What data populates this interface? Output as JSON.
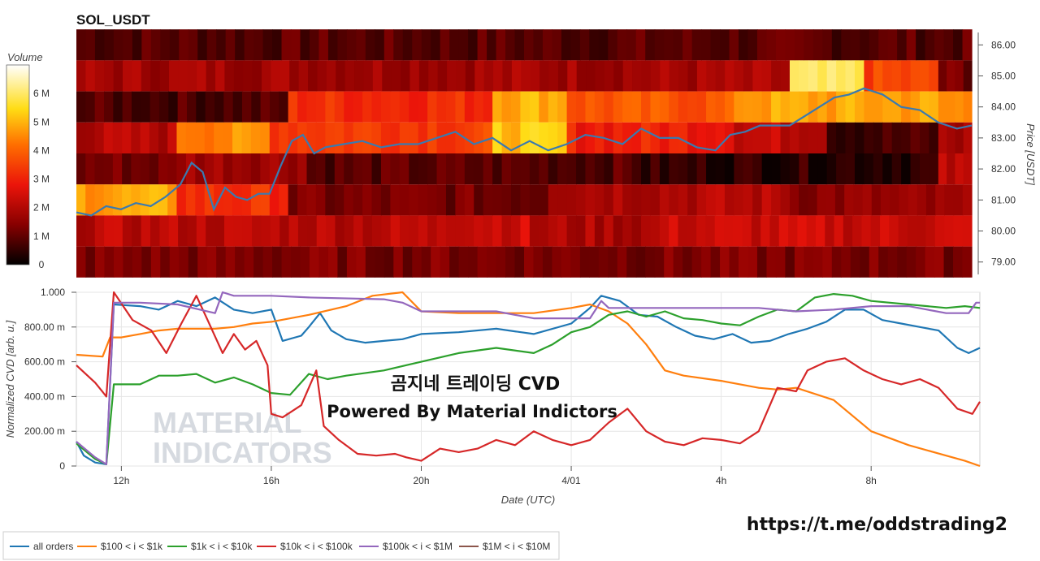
{
  "title": "SOL_USDT",
  "overlay": {
    "line1": "곰지네 트레이딩 CVD",
    "line2": "Powered By Material Indictors",
    "url": "https://t.me/oddstrading2",
    "watermark_top": "MATERIAL",
    "watermark_bottom": "INDICATORS"
  },
  "chart_data": [
    {
      "type": "heatmap",
      "title": "SOL_USDT",
      "ylabel": "Price [USDT]",
      "colorbar": {
        "title": "Volume",
        "ticks": [
          "0",
          "1 M",
          "2 M",
          "3 M",
          "4 M",
          "5 M",
          "6 M"
        ],
        "range": [
          0,
          7
        ]
      },
      "ylim": [
        78.6,
        86.4
      ],
      "y_ticks": [
        "79.00",
        "80.00",
        "81.00",
        "82.00",
        "83.00",
        "84.00",
        "85.00",
        "86.00"
      ],
      "price_bins": [
        79,
        80,
        81,
        82,
        83,
        84,
        85,
        86
      ],
      "x_range": [
        10.8,
        34.9
      ],
      "colors": {
        "low": "#000000",
        "mid1": "#a50000",
        "mid2": "#ff1e00",
        "mid3": "#ffb000",
        "high": "#ffffff"
      },
      "bands": [
        {
          "price": 86,
          "segments": [
            [
              10.8,
              34.9,
              0.9
            ]
          ]
        },
        {
          "price": 85,
          "segments": [
            [
              10.8,
              30.0,
              1.8
            ],
            [
              30.0,
              32.0,
              5.8
            ],
            [
              32.0,
              34.0,
              3.5
            ],
            [
              34.0,
              34.9,
              1.2
            ]
          ]
        },
        {
          "price": 84,
          "segments": [
            [
              10.8,
              16.5,
              0.8
            ],
            [
              16.5,
              22.0,
              3.2
            ],
            [
              22.0,
              24.0,
              5.0
            ],
            [
              24.0,
              28.5,
              3.8
            ],
            [
              28.5,
              34.0,
              4.8
            ],
            [
              34.0,
              34.9,
              4.5
            ]
          ]
        },
        {
          "price": 83,
          "segments": [
            [
              10.8,
              13.5,
              2.0
            ],
            [
              13.5,
              16.0,
              4.5
            ],
            [
              16.0,
              22.0,
              3.5
            ],
            [
              22.0,
              24.0,
              5.2
            ],
            [
              24.0,
              28.5,
              3.0
            ],
            [
              28.5,
              31.0,
              2.2
            ],
            [
              31.0,
              34.0,
              0.7
            ],
            [
              34.0,
              34.9,
              1.8
            ]
          ]
        },
        {
          "price": 82,
          "segments": [
            [
              10.8,
              13.5,
              1.2
            ],
            [
              13.5,
              17.0,
              1.8
            ],
            [
              17.0,
              26.0,
              0.9
            ],
            [
              26.0,
              34.0,
              0.5
            ],
            [
              34.0,
              34.9,
              2.0
            ]
          ]
        },
        {
          "price": 81,
          "segments": [
            [
              10.8,
              13.5,
              4.8
            ],
            [
              13.5,
              16.5,
              3.2
            ],
            [
              16.5,
              23.5,
              1.2
            ],
            [
              23.5,
              30.0,
              2.0
            ],
            [
              30.0,
              34.9,
              1.5
            ]
          ]
        },
        {
          "price": 80,
          "segments": [
            [
              10.8,
              20.5,
              2.1
            ],
            [
              20.5,
              23.0,
              2.4
            ],
            [
              23.0,
              26.5,
              1.9
            ],
            [
              26.5,
              34.9,
              2.3
            ]
          ]
        },
        {
          "price": 79,
          "segments": [
            [
              10.8,
              34.9,
              1.3
            ]
          ]
        }
      ],
      "price_line": {
        "color": "#3a7ab0",
        "x": [
          10.8,
          11.2,
          11.6,
          12.0,
          12.4,
          12.8,
          13.2,
          13.6,
          13.9,
          14.2,
          14.5,
          14.8,
          15.1,
          15.4,
          15.7,
          16.0,
          16.3,
          16.6,
          16.9,
          17.2,
          17.5,
          18.0,
          18.5,
          19.0,
          19.5,
          20.0,
          20.5,
          21.0,
          21.5,
          22.0,
          22.5,
          23.0,
          23.5,
          24.0,
          24.5,
          25.0,
          25.5,
          26.0,
          26.5,
          27.0,
          27.5,
          28.0,
          28.4,
          28.8,
          29.2,
          29.6,
          30.0,
          30.4,
          30.8,
          31.2,
          31.6,
          32.0,
          32.5,
          33.0,
          33.5,
          34.0,
          34.5,
          34.9
        ],
        "y": [
          80.6,
          80.5,
          80.8,
          80.7,
          80.9,
          80.8,
          81.1,
          81.5,
          82.2,
          81.9,
          80.7,
          81.4,
          81.1,
          81.0,
          81.2,
          81.2,
          82.1,
          82.9,
          83.1,
          82.5,
          82.7,
          82.8,
          82.9,
          82.7,
          82.8,
          82.8,
          83.0,
          83.2,
          82.8,
          83.0,
          82.6,
          82.9,
          82.6,
          82.8,
          83.1,
          83.0,
          82.8,
          83.3,
          83.0,
          83.0,
          82.7,
          82.6,
          83.1,
          83.2,
          83.4,
          83.4,
          83.4,
          83.7,
          84.0,
          84.3,
          84.4,
          84.6,
          84.4,
          84.0,
          83.9,
          83.5,
          83.3,
          83.4
        ]
      }
    },
    {
      "type": "line",
      "xlabel": "Date (UTC)",
      "ylabel": "Normalized CVD [arb. u.]",
      "ylim": [
        0,
        1.0
      ],
      "y_ticks": [
        "0",
        "200.00 m",
        "400.00 m",
        "600.00 m",
        "800.00 m",
        "1.000"
      ],
      "y_tick_values": [
        0,
        0.2,
        0.4,
        0.6,
        0.8,
        1.0
      ],
      "x_ticks": [
        "12h",
        "16h",
        "20h",
        "4/01",
        "4h",
        "8h"
      ],
      "x_tick_values": [
        12,
        16,
        20,
        24,
        28,
        32
      ],
      "x_range": [
        10.8,
        34.9
      ],
      "legend_position": "bottom",
      "series": [
        {
          "name": "all orders",
          "color": "#1f77b4",
          "x": [
            10.8,
            11.0,
            11.3,
            11.6,
            11.8,
            12.5,
            13.0,
            13.5,
            14.0,
            14.5,
            15.0,
            15.5,
            16.0,
            16.3,
            16.8,
            17.0,
            17.3,
            17.6,
            18.0,
            18.5,
            19.0,
            19.5,
            20.0,
            21.0,
            22.0,
            23.0,
            24.0,
            24.5,
            24.8,
            25.3,
            25.8,
            26.3,
            26.8,
            27.3,
            27.8,
            28.3,
            28.8,
            29.3,
            29.8,
            30.3,
            30.8,
            31.3,
            31.8,
            32.3,
            32.8,
            33.3,
            33.8,
            34.3,
            34.6,
            34.9
          ],
          "y": [
            0.14,
            0.06,
            0.02,
            0.01,
            0.93,
            0.92,
            0.9,
            0.95,
            0.92,
            0.97,
            0.9,
            0.88,
            0.9,
            0.72,
            0.75,
            0.8,
            0.88,
            0.78,
            0.73,
            0.71,
            0.72,
            0.73,
            0.76,
            0.77,
            0.79,
            0.76,
            0.82,
            0.91,
            0.98,
            0.95,
            0.87,
            0.86,
            0.8,
            0.75,
            0.73,
            0.76,
            0.71,
            0.72,
            0.76,
            0.79,
            0.83,
            0.9,
            0.9,
            0.84,
            0.82,
            0.8,
            0.78,
            0.68,
            0.65,
            0.68
          ]
        },
        {
          "name": "$100 < i < $1k",
          "color": "#ff7f0e",
          "x": [
            10.8,
            11.5,
            11.7,
            12.0,
            12.5,
            13.0,
            13.5,
            14.0,
            14.5,
            15.0,
            15.5,
            16.0,
            17.0,
            18.0,
            18.7,
            19.5,
            20.0,
            21.0,
            22.0,
            23.0,
            24.0,
            24.5,
            25.0,
            25.5,
            26.0,
            26.5,
            27.0,
            28.0,
            29.0,
            29.5,
            30.0,
            31.0,
            32.0,
            33.0,
            34.0,
            34.5,
            34.9
          ],
          "y": [
            0.64,
            0.63,
            0.74,
            0.74,
            0.76,
            0.78,
            0.79,
            0.79,
            0.79,
            0.8,
            0.82,
            0.83,
            0.87,
            0.92,
            0.98,
            1.0,
            0.89,
            0.88,
            0.88,
            0.88,
            0.91,
            0.93,
            0.89,
            0.82,
            0.7,
            0.55,
            0.52,
            0.49,
            0.45,
            0.44,
            0.45,
            0.38,
            0.2,
            0.12,
            0.06,
            0.03,
            0.0
          ]
        },
        {
          "name": "$1k < i < $10k",
          "color": "#2ca02c",
          "x": [
            10.8,
            11.3,
            11.6,
            11.8,
            12.5,
            13.0,
            13.5,
            14.0,
            14.5,
            15.0,
            15.5,
            16.0,
            16.5,
            17.0,
            17.5,
            18.0,
            19.0,
            20.0,
            21.0,
            22.0,
            23.0,
            23.5,
            24.0,
            24.5,
            25.0,
            25.5,
            26.0,
            26.5,
            27.0,
            27.5,
            28.0,
            28.5,
            29.0,
            29.5,
            30.0,
            30.5,
            31.0,
            31.5,
            32.0,
            33.0,
            34.0,
            34.5,
            34.9
          ],
          "y": [
            0.13,
            0.04,
            0.01,
            0.47,
            0.47,
            0.52,
            0.52,
            0.53,
            0.48,
            0.51,
            0.47,
            0.42,
            0.41,
            0.53,
            0.5,
            0.52,
            0.55,
            0.6,
            0.65,
            0.68,
            0.65,
            0.7,
            0.77,
            0.8,
            0.87,
            0.89,
            0.86,
            0.89,
            0.85,
            0.84,
            0.82,
            0.81,
            0.86,
            0.9,
            0.89,
            0.97,
            0.99,
            0.98,
            0.95,
            0.93,
            0.91,
            0.92,
            0.91
          ]
        },
        {
          "name": "$10k < i < $100k",
          "color": "#d62728",
          "x": [
            10.8,
            11.3,
            11.6,
            11.8,
            12.3,
            12.8,
            13.2,
            13.6,
            14.0,
            14.3,
            14.7,
            15.0,
            15.3,
            15.6,
            15.9,
            16.0,
            16.3,
            16.8,
            17.2,
            17.4,
            17.8,
            18.3,
            18.8,
            19.3,
            19.6,
            20.0,
            20.5,
            21.0,
            21.5,
            22.0,
            22.5,
            23.0,
            23.5,
            24.0,
            24.5,
            25.0,
            25.5,
            26.0,
            26.5,
            27.0,
            27.5,
            28.0,
            28.5,
            29.0,
            29.5,
            30.0,
            30.3,
            30.8,
            31.3,
            31.8,
            32.3,
            32.8,
            33.3,
            33.8,
            34.3,
            34.7,
            34.9
          ],
          "y": [
            0.58,
            0.48,
            0.4,
            1.0,
            0.84,
            0.78,
            0.65,
            0.82,
            0.98,
            0.84,
            0.65,
            0.76,
            0.67,
            0.72,
            0.58,
            0.3,
            0.28,
            0.35,
            0.55,
            0.23,
            0.15,
            0.07,
            0.06,
            0.07,
            0.05,
            0.03,
            0.1,
            0.08,
            0.1,
            0.15,
            0.12,
            0.2,
            0.15,
            0.12,
            0.15,
            0.25,
            0.33,
            0.2,
            0.14,
            0.12,
            0.16,
            0.15,
            0.13,
            0.2,
            0.45,
            0.43,
            0.55,
            0.6,
            0.62,
            0.55,
            0.5,
            0.47,
            0.5,
            0.45,
            0.33,
            0.3,
            0.37
          ]
        },
        {
          "name": "$100k < i < $1M",
          "color": "#9467bd",
          "x": [
            10.8,
            11.3,
            11.6,
            11.8,
            12.5,
            13.5,
            14.5,
            14.7,
            15.0,
            16.0,
            17.0,
            19.0,
            19.5,
            20.0,
            21.0,
            22.0,
            23.0,
            24.0,
            24.5,
            24.8,
            25.0,
            26.0,
            27.0,
            28.0,
            29.0,
            30.0,
            31.0,
            32.0,
            32.5,
            33.0,
            34.0,
            34.6,
            34.8,
            34.9
          ],
          "y": [
            0.14,
            0.05,
            0.01,
            0.94,
            0.94,
            0.93,
            0.88,
            1.0,
            0.98,
            0.98,
            0.97,
            0.96,
            0.94,
            0.89,
            0.89,
            0.89,
            0.85,
            0.85,
            0.85,
            0.95,
            0.91,
            0.91,
            0.91,
            0.91,
            0.91,
            0.89,
            0.9,
            0.92,
            0.92,
            0.92,
            0.88,
            0.88,
            0.94,
            0.94
          ]
        },
        {
          "name": "$1M < i < $10M",
          "color": "#8c564b",
          "x": [],
          "y": []
        }
      ]
    }
  ]
}
